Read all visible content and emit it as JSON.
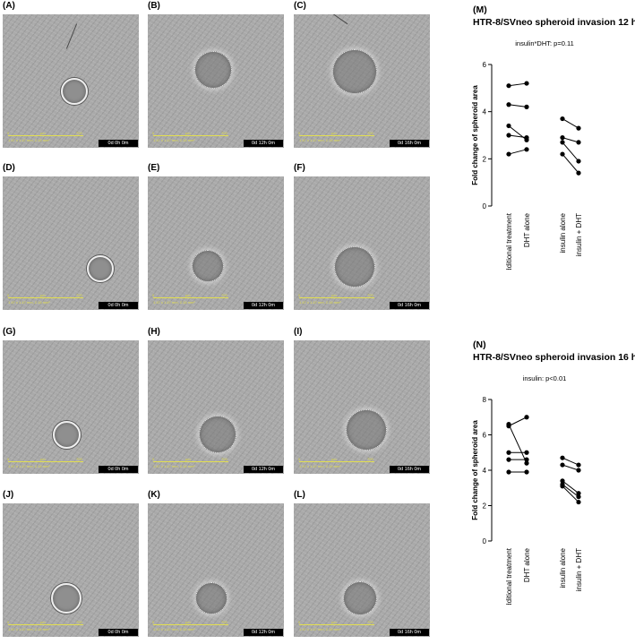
{
  "panels": [
    {
      "letter": "(A)",
      "timestamp": "0d 0h 0m"
    },
    {
      "letter": "(B)",
      "timestamp": "0d 12h 0m"
    },
    {
      "letter": "(C)",
      "timestamp": "0d 16h 0m"
    },
    {
      "letter": "(D)",
      "timestamp": "0d 0h 0m"
    },
    {
      "letter": "(E)",
      "timestamp": "0d 12h 0m"
    },
    {
      "letter": "(F)",
      "timestamp": "0d 16h 0m"
    },
    {
      "letter": "(G)",
      "timestamp": "0d 0h 0m"
    },
    {
      "letter": "(H)",
      "timestamp": "0d 12h 0m"
    },
    {
      "letter": "(I)",
      "timestamp": "0d 16h 0m"
    },
    {
      "letter": "(J)",
      "timestamp": "0d 0h 0m"
    },
    {
      "letter": "(K)",
      "timestamp": "0d 12h 0m"
    },
    {
      "letter": "(L)",
      "timestamp": "0d 16h 0m"
    }
  ],
  "scale_bar": {
    "start": "0",
    "unit": "µm",
    "end": "700",
    "dims": "1.47 x 1.47 mm, 2.16 mm²"
  },
  "chart_data": [
    {
      "type": "scatter",
      "letter": "(M)",
      "title": "HTR-8/SVneo spheroid invasion 12 h",
      "annotation": "insulin*DHT: p=0.11",
      "ylabel": "Fold change of spheroid area",
      "ylim": [
        0,
        6
      ],
      "yticks": [
        0,
        2,
        4,
        6
      ],
      "categories": [
        "no additional treatment",
        "DHT alone",
        "insulin alone",
        "insulin + DHT"
      ],
      "paired_groups": [
        [
          0,
          1
        ],
        [
          2,
          3
        ]
      ],
      "series": [
        {
          "values": [
            5.1,
            5.2,
            null,
            null
          ]
        },
        {
          "values": [
            4.3,
            4.2,
            null,
            null
          ]
        },
        {
          "values": [
            3.4,
            2.8,
            null,
            null
          ]
        },
        {
          "values": [
            3.0,
            2.9,
            null,
            null
          ]
        },
        {
          "values": [
            2.2,
            2.4,
            null,
            null
          ]
        },
        {
          "values": [
            null,
            null,
            3.7,
            3.3
          ]
        },
        {
          "values": [
            null,
            null,
            2.9,
            2.7
          ]
        },
        {
          "values": [
            null,
            null,
            2.7,
            1.9
          ]
        },
        {
          "values": [
            null,
            null,
            2.2,
            1.4
          ]
        }
      ],
      "grid": false
    },
    {
      "type": "scatter",
      "letter": "(N)",
      "title": "HTR-8/SVneo spheroid invasion 16 h",
      "annotation": "insulin: p<0.01",
      "ylabel": "Fold change of spheroid area",
      "ylim": [
        0,
        8
      ],
      "yticks": [
        0,
        2,
        4,
        6,
        8
      ],
      "categories": [
        "no additional treatment",
        "DHT alone",
        "insulin alone",
        "insulin + DHT"
      ],
      "paired_groups": [
        [
          0,
          1
        ],
        [
          2,
          3
        ]
      ],
      "series": [
        {
          "values": [
            6.6,
            4.4,
            null,
            null
          ]
        },
        {
          "values": [
            6.5,
            7.0,
            null,
            null
          ]
        },
        {
          "values": [
            5.0,
            5.0,
            null,
            null
          ]
        },
        {
          "values": [
            4.6,
            4.6,
            null,
            null
          ]
        },
        {
          "values": [
            3.9,
            3.9,
            null,
            null
          ]
        },
        {
          "values": [
            null,
            null,
            4.7,
            4.3
          ]
        },
        {
          "values": [
            null,
            null,
            4.3,
            4.0
          ]
        },
        {
          "values": [
            null,
            null,
            3.4,
            2.7
          ]
        },
        {
          "values": [
            null,
            null,
            3.2,
            2.5
          ]
        },
        {
          "values": [
            null,
            null,
            3.1,
            2.2
          ]
        }
      ],
      "grid": false
    }
  ]
}
